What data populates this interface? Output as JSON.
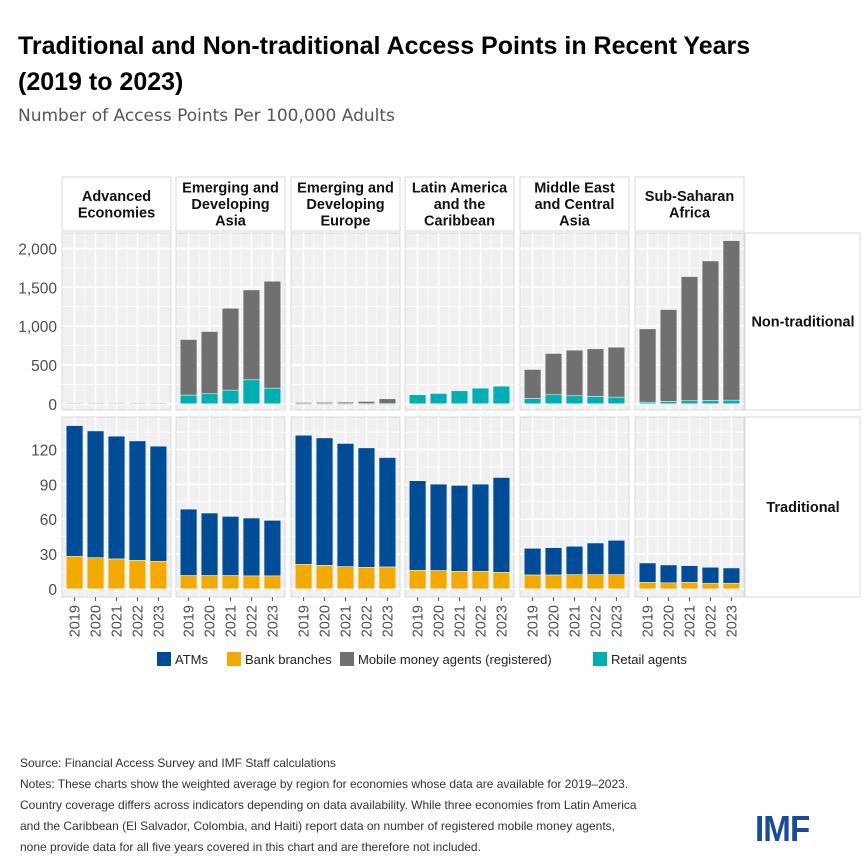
{
  "title_lines": [
    "Traditional and Non-traditional Access Points in Recent Years",
    "(2019 to 2023)"
  ],
  "subtitle": "Number of Access Points Per 100,000 Adults",
  "notes": [
    "Source: Financial Access Survey and IMF Staff calculations",
    "Notes: These charts show the weighted average by region for economies  whose data are available for 2019–2023.",
    "Country coverage differs across indicators depending on data availability. While three economies from Latin America",
    "and the Caribbean (El Salvador, Colombia, and Haiti) report data on number of registered mobile money agents,",
    "none provide data for all five years covered in this chart and are therefore not included."
  ],
  "logo_text": "IMF",
  "chart_data": {
    "type": "bar",
    "stacked": true,
    "faceted": true,
    "categories": [
      "2019",
      "2020",
      "2021",
      "2022",
      "2023"
    ],
    "colors": {
      "ATMs": "#004C97",
      "Bank branches": "#F2A900",
      "Mobile money agents (registered)": "#707070",
      "Retail agents": "#00AEB3"
    },
    "legend": {
      "position": "bottom",
      "entries": [
        "ATMs",
        "Bank branches",
        "Mobile money agents (registered)",
        "Retail agents"
      ]
    },
    "grid": true,
    "panels": [
      {
        "label": [
          "Advanced",
          "Economies"
        ]
      },
      {
        "label": [
          "Emerging and",
          "Developing",
          "Asia"
        ]
      },
      {
        "label": [
          "Emerging and",
          "Developing",
          "Europe"
        ]
      },
      {
        "label": [
          "Latin America",
          "and the",
          "Caribbean"
        ]
      },
      {
        "label": [
          "Middle East",
          "and Central",
          "Asia"
        ]
      },
      {
        "label": [
          "Sub-Saharan",
          "Africa"
        ]
      }
    ],
    "rows": [
      {
        "label": "Non-traditional",
        "ylim": [
          -80,
          2200
        ],
        "yticks": [
          0,
          500,
          1000,
          1500,
          2000
        ],
        "ytick_labels": [
          "0",
          "500",
          "1,000",
          "1,500",
          "2,000"
        ],
        "series": [
          {
            "name": "Retail agents",
            "values": [
              [
                8,
                8,
                8,
                8,
                8
              ],
              [
                112,
                129,
                176,
                309,
                202
              ],
              [
                2,
                2,
                2,
                2,
                2
              ],
              [
                116,
                133,
                167,
                202,
                227
              ],
              [
                69,
                116,
                103,
                94,
                86
              ],
              [
                21,
                30,
                39,
                43,
                47
              ]
            ]
          },
          {
            "name": "Mobile money agents (registered)",
            "values": [
              [
                0,
                0,
                0,
                0,
                0
              ],
              [
                716,
                802,
                1055,
                1158,
                1377
              ],
              [
                15,
                17,
                20,
                28,
                62
              ],
              [
                0,
                0,
                0,
                0,
                0
              ],
              [
                373,
                532,
                588,
                614,
                643
              ],
              [
                944,
                1184,
                1600,
                1797,
                2055
              ]
            ]
          }
        ]
      },
      {
        "label": "Traditional",
        "ylim": [
          -7,
          148
        ],
        "yticks": [
          0,
          30,
          60,
          90,
          120
        ],
        "ytick_labels": [
          "0",
          "30",
          "60",
          "90",
          "120"
        ],
        "series": [
          {
            "name": "Bank branches",
            "values": [
              [
                28.1,
                26.9,
                25.8,
                24.6,
                23.8
              ],
              [
                11.5,
                11.5,
                11.5,
                11.2,
                11.2
              ],
              [
                21.2,
                20.3,
                19.2,
                18.6,
                18.9
              ],
              [
                16.0,
                15.8,
                15.2,
                15.2,
                14.3
              ],
              [
                12.0,
                12.0,
                12.3,
                12.3,
                12.3
              ],
              [
                5.7,
                5.2,
                5.7,
                4.9,
                4.9
              ]
            ]
          },
          {
            "name": "ATMs",
            "values": [
              [
                112.5,
                109.1,
                105.7,
                102.8,
                99.1
              ],
              [
                57.2,
                53.8,
                50.9,
                49.8,
                47.8
              ],
              [
                111.1,
                109.7,
                106.0,
                102.8,
                94.2
              ],
              [
                77.1,
                74.4,
                73.9,
                75.0,
                81.6
              ],
              [
                22.9,
                23.5,
                24.4,
                27.2,
                29.5
              ],
              [
                16.6,
                15.4,
                14.3,
                13.7,
                13.1
              ]
            ]
          }
        ]
      }
    ]
  }
}
